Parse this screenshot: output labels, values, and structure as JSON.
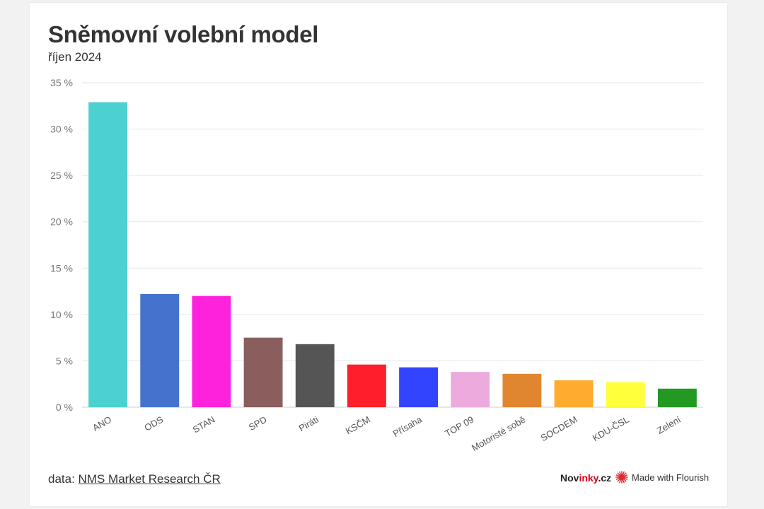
{
  "header": {
    "title": "Sněmovní volební model",
    "subtitle": "říjen 2024"
  },
  "footer": {
    "source_prefix": "data: ",
    "source_link": "NMS Market Research ČR",
    "brand_part1": "Nov",
    "brand_part2": "inky",
    "brand_part3": ".cz",
    "flourish_label": "Made with Flourish"
  },
  "chart_data": {
    "type": "bar",
    "title": "Sněmovní volební model",
    "subtitle": "říjen 2024",
    "categories": [
      "ANO",
      "ODS",
      "STAN",
      "SPD",
      "Piráti",
      "KSČM",
      "Přísaha",
      "TOP 09",
      "Motoristé sobě",
      "SOCDEM",
      "KDU-ČSL",
      "Zelení"
    ],
    "values": [
      32.9,
      12.2,
      12.0,
      7.5,
      6.8,
      4.6,
      4.3,
      3.8,
      3.6,
      2.9,
      2.7,
      2.0
    ],
    "colors": [
      "#4dd0d0",
      "#4472cc",
      "#ff22dd",
      "#8b5e5e",
      "#555555",
      "#ff1f2c",
      "#3344ff",
      "#ecaadd",
      "#e0862e",
      "#ffab2e",
      "#ffff3c",
      "#229922"
    ],
    "yticks": [
      "0 %",
      "5 %",
      "10 %",
      "15 %",
      "20 %",
      "25 %",
      "30 %",
      "35 %"
    ],
    "ylim": [
      0,
      35
    ],
    "grid": true,
    "xlabel": "",
    "ylabel": ""
  }
}
